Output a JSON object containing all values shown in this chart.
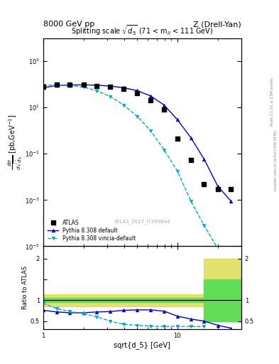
{
  "title_left": "8000 GeV pp",
  "title_right": "Z (Drell-Yan)",
  "plot_title": "Splitting scale $\\sqrt{d_5}$ (71 < m$_{ll}$ < 111 GeV)",
  "ylabel_ratio": "Ratio to ATLAS",
  "xlabel": "sqrt{d_5} [GeV]",
  "watermark": "ATLAS_2017_I1599844",
  "right_label": "mcplots.cern.ch [arXiv:1306.3436]",
  "right_label2": "Rivet 3.1.10, ≥ 2.8M events",
  "atlas_x": [
    1.0,
    1.26,
    1.58,
    2.0,
    2.51,
    3.16,
    3.98,
    5.01,
    6.31,
    7.94,
    10.0,
    12.6,
    15.8,
    20.0,
    25.1
  ],
  "atlas_y": [
    82,
    100,
    100,
    96,
    88,
    79,
    63,
    43,
    20,
    8.5,
    0.45,
    0.055,
    0.005,
    0.003,
    0.003
  ],
  "pythia_x": [
    1.0,
    1.26,
    1.58,
    2.0,
    2.51,
    3.16,
    3.98,
    5.01,
    6.31,
    7.94,
    10.0,
    12.6,
    15.8,
    20.0,
    25.1
  ],
  "pythia_y": [
    72,
    90,
    95,
    96,
    93,
    85,
    72,
    54,
    32,
    13,
    3.0,
    0.5,
    0.06,
    0.004,
    0.0009
  ],
  "vincia_x": [
    1.0,
    1.26,
    1.58,
    2.0,
    2.51,
    3.16,
    3.98,
    5.01,
    6.31,
    7.94,
    10.0,
    12.6,
    15.8,
    20.0,
    25.1
  ],
  "vincia_y": [
    93,
    95,
    88,
    77,
    53,
    30,
    13,
    4.2,
    1.0,
    0.15,
    0.018,
    0.0009,
    8e-05,
    8e-06,
    9e-07
  ],
  "ratio_pythia_x": [
    1.0,
    1.26,
    1.58,
    2.0,
    2.51,
    3.16,
    3.98,
    5.01,
    6.31,
    7.94,
    10.0,
    12.6,
    15.8,
    20.0,
    25.1
  ],
  "ratio_pythia_y": [
    0.76,
    0.72,
    0.7,
    0.7,
    0.72,
    0.73,
    0.76,
    0.77,
    0.77,
    0.74,
    0.62,
    0.55,
    0.5,
    0.4,
    0.33
  ],
  "ratio_vincia_x": [
    1.0,
    1.26,
    1.58,
    2.0,
    2.51,
    3.16,
    3.98,
    5.01,
    6.31,
    7.94,
    10.0,
    12.6,
    15.8
  ],
  "ratio_vincia_y": [
    0.93,
    0.8,
    0.73,
    0.68,
    0.6,
    0.5,
    0.42,
    0.4,
    0.38,
    0.37,
    0.37,
    0.37,
    0.37
  ],
  "band_xlo": 1.0,
  "band_xmid": 15.8,
  "band_xhi": 30.0,
  "color_atlas": "#000000",
  "color_pythia": "#0000cc",
  "color_vincia": "#00aacc",
  "color_green": "#55dd55",
  "color_yellow": "#dddd55",
  "xmin": 1.0,
  "xmax": 30.0,
  "ymin": 1e-05,
  "ymax": 10000.0,
  "ratio_ymin": 0.3,
  "ratio_ymax": 2.3
}
